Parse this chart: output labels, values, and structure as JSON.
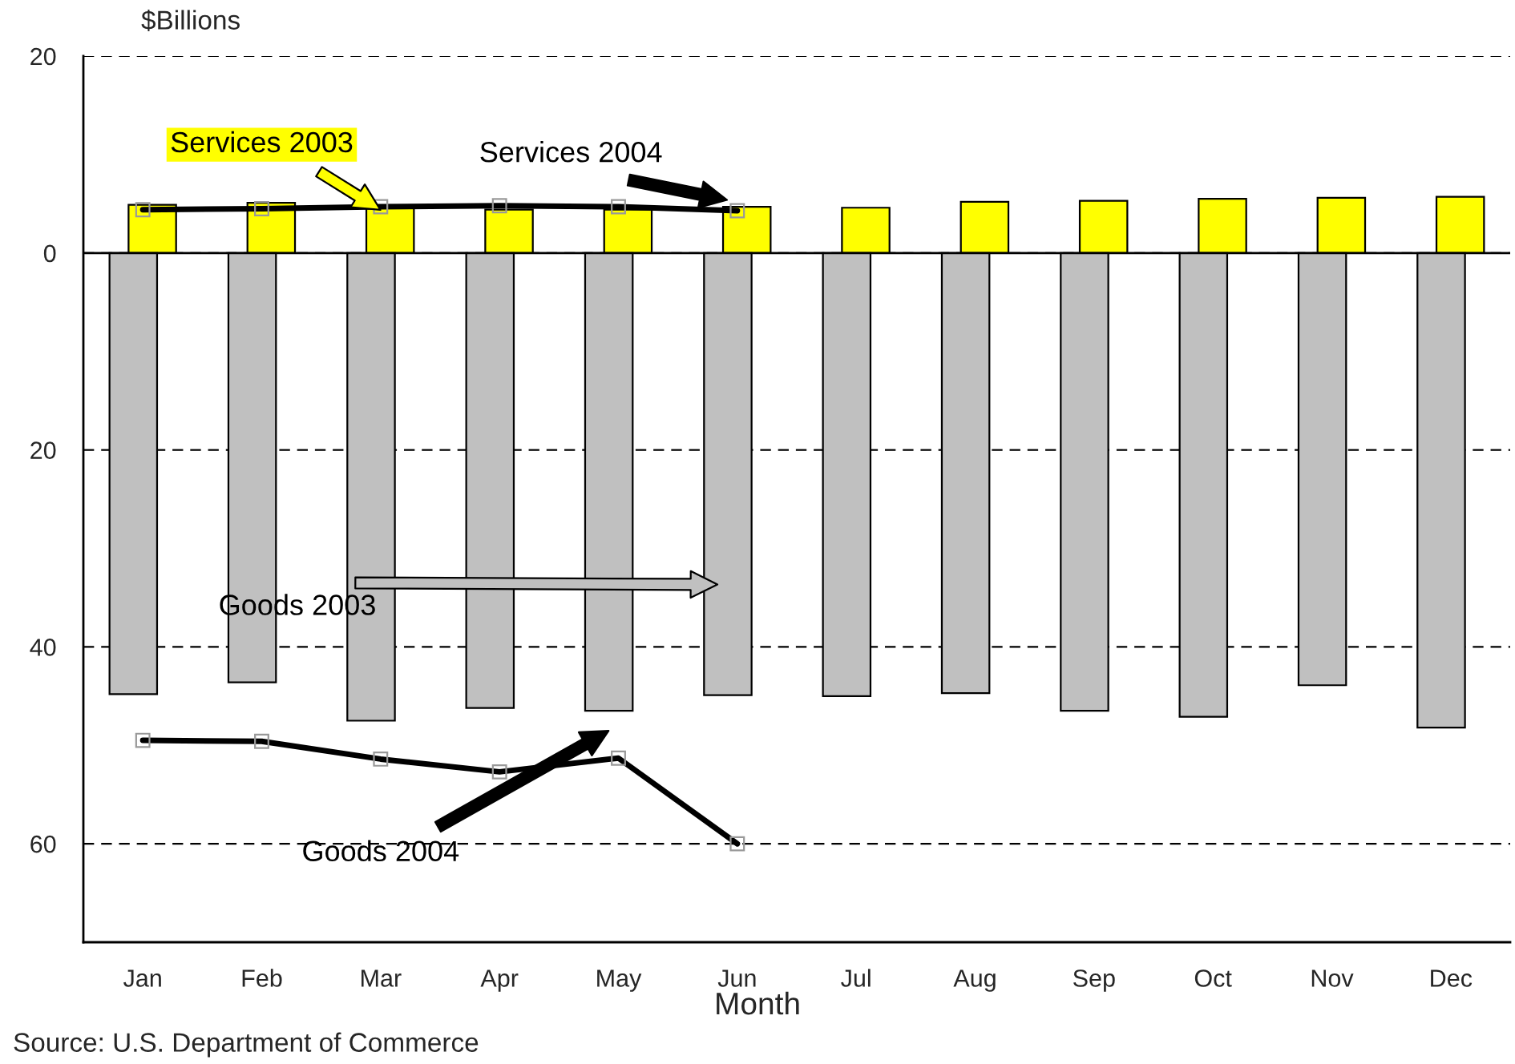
{
  "chart_data": {
    "type": "bar",
    "ylabel": "$Billions",
    "xlabel": "Month",
    "categories": [
      "Jan",
      "Feb",
      "Mar",
      "Apr",
      "May",
      "Jun",
      "Jul",
      "Aug",
      "Sep",
      "Oct",
      "Nov",
      "Dec"
    ],
    "series": [
      {
        "name": "Services 2003",
        "color": "#ffff00",
        "values": [
          4.9,
          5.1,
          4.6,
          4.4,
          4.4,
          4.7,
          4.6,
          5.2,
          5.3,
          5.5,
          5.6,
          5.7
        ]
      },
      {
        "name": "Services 2004",
        "type": "line",
        "color": "#000000",
        "values": [
          4.4,
          4.5,
          4.7,
          4.8,
          4.7,
          4.3,
          null,
          null,
          null,
          null,
          null,
          null
        ]
      },
      {
        "name": "Goods 2003",
        "color": "#c0c0c0",
        "values": [
          -44.8,
          -43.6,
          -47.5,
          -46.2,
          -46.5,
          -44.9,
          -45.0,
          -44.7,
          -46.5,
          -47.1,
          -43.9,
          -48.2
        ]
      },
      {
        "name": "Goods 2004",
        "type": "line",
        "color": "#000000",
        "values": [
          -49.5,
          -49.6,
          -51.4,
          -52.7,
          -51.3,
          -60.0,
          null,
          null,
          null,
          null,
          null,
          null
        ]
      }
    ],
    "ylim": [
      -70,
      20
    ],
    "yticks": [
      {
        "value": -60,
        "label": "60"
      },
      {
        "value": -40,
        "label": "40"
      },
      {
        "value": -20,
        "label": "20"
      },
      0,
      20
    ],
    "ref_lines": [
      {
        "axis": "y",
        "value": 0,
        "color": "#000000",
        "line_style": "solid"
      }
    ],
    "grid": "y",
    "marker": "square",
    "line_style": "solid",
    "legend": false,
    "annotations": [
      "Source: U.S. Department of Commerce"
    ]
  }
}
